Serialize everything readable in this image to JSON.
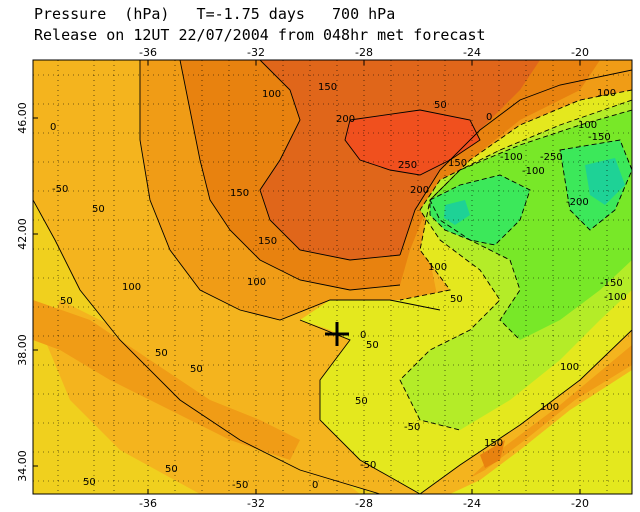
{
  "title": {
    "line1": "Pressure  (hPa)   T=-1.75 days   700 hPa",
    "line2": "Release on 12UT 22/07/2004 from 048hr met forecast"
  },
  "map": {
    "lon_range": [
      -39.5,
      -17.2
    ],
    "lat_range": [
      32.8,
      47.4
    ],
    "lon_ticks_top": [
      "-36",
      "-32",
      "-28",
      "-24",
      "-20"
    ],
    "lon_ticks_bottom": [
      "-36",
      "-32",
      "-28",
      "-24",
      "-20"
    ],
    "lat_ticks": [
      "46.00",
      "42.00",
      "38.00",
      "34.00"
    ],
    "release_marker": {
      "lon": -28.3,
      "lat": 38.4,
      "symbol": "+"
    },
    "contour_labels": [
      "0",
      "50",
      "100",
      "150",
      "200",
      "250",
      "-50",
      "-100",
      "-150",
      "-200",
      "-250"
    ],
    "colors": {
      "p250": "#f0501e",
      "p200": "#e0661a",
      "p150": "#e8820f",
      "p100": "#f09c16",
      "p50": "#f4b41e",
      "p0": "#f0d01e",
      "m50": "#e4e81e",
      "m100": "#b4ec28",
      "m150": "#78e828",
      "m200": "#3ce85a",
      "m250": "#1ed296",
      "frame": "#000000",
      "grid": "#000000"
    }
  }
}
